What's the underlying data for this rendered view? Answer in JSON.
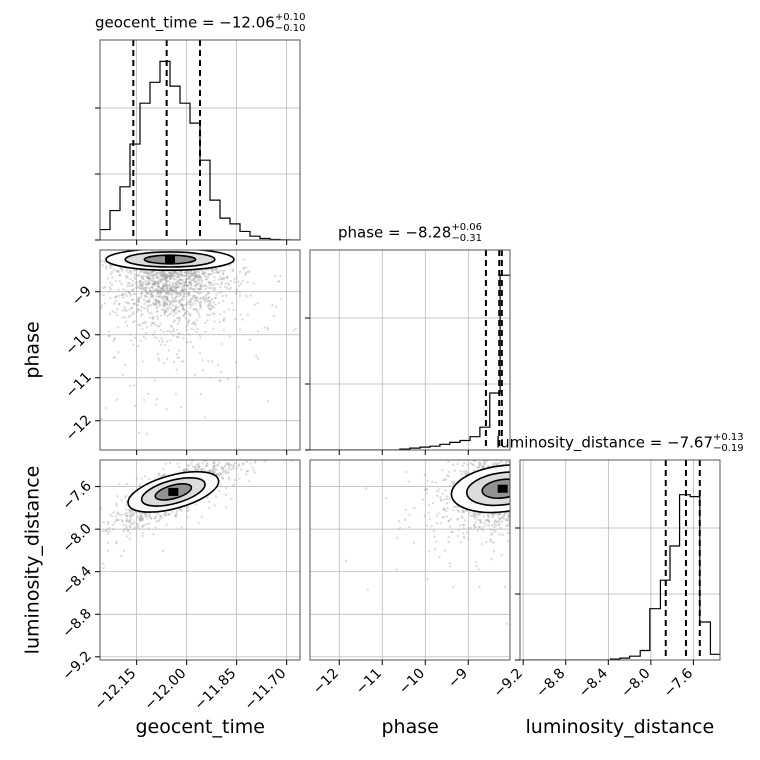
{
  "chart_data": {
    "type": "corner",
    "parameters": [
      "geocent_time",
      "phase",
      "luminosity_distance"
    ],
    "ranges": {
      "geocent_time": [
        -12.26,
        -11.66
      ],
      "phase": [
        -12.68,
        -8.03
      ],
      "luminosity_distance": [
        -9.23,
        -7.35
      ]
    },
    "quantiles": {
      "geocent_time": [
        -12.16,
        -12.06,
        -11.96
      ],
      "phase": [
        -8.59,
        -8.28,
        -8.22
      ],
      "luminosity_distance": [
        -7.86,
        -7.67,
        -7.54
      ]
    },
    "titles": [
      {
        "param": "geocent_time",
        "prefix": "geocent_time = ",
        "value": "−12.06",
        "plus": "+0.10",
        "minus": "−0.10"
      },
      {
        "param": "phase",
        "prefix": "phase = ",
        "value": "−8.28",
        "plus": "+0.06",
        "minus": "−0.31"
      },
      {
        "param": "luminosity_distance",
        "prefix": "luminosity_distance = ",
        "value": "−7.67",
        "plus": "+0.13",
        "minus": "−0.19"
      }
    ],
    "x_axis_labels": [
      "geocent_time",
      "phase",
      "luminosity_distance"
    ],
    "y_axis_labels": [
      "phase",
      "luminosity_distance"
    ],
    "ticks": {
      "geocent_time": {
        "values": [
          -12.15,
          -12.0,
          -11.85,
          -11.7
        ],
        "labels": [
          "−12.15",
          "−12.00",
          "−11.85",
          "−11.70"
        ]
      },
      "phase": {
        "values": [
          -12,
          -11,
          -10,
          -9
        ],
        "labels": [
          "−12",
          "−11",
          "−10",
          "−9"
        ]
      },
      "luminosity_distance": {
        "values": [
          -9.2,
          -8.8,
          -8.4,
          -8.0,
          -7.6
        ],
        "labels": [
          "−9.2",
          "−8.8",
          "−8.4",
          "−8.0",
          "−7.6"
        ]
      }
    },
    "histograms": {
      "geocent_time": {
        "edges": [
          -12.26,
          -12.23,
          -12.2,
          -12.17,
          -12.14,
          -12.11,
          -12.08,
          -12.05,
          -12.02,
          -11.99,
          -11.96,
          -11.93,
          -11.9,
          -11.87,
          -11.84,
          -11.81,
          -11.78,
          -11.75,
          -11.72,
          -11.69,
          -11.66
        ],
        "counts": [
          0.055,
          0.155,
          0.28,
          0.505,
          0.72,
          0.83,
          0.94,
          0.81,
          0.72,
          0.615,
          0.42,
          0.21,
          0.115,
          0.085,
          0.045,
          0.02,
          0.008,
          0.003,
          0.001,
          0.0
        ]
      },
      "phase": {
        "edges": [
          -12.68,
          -12.45,
          -12.22,
          -11.98,
          -11.75,
          -11.52,
          -11.29,
          -11.05,
          -10.82,
          -10.59,
          -10.36,
          -10.12,
          -9.89,
          -9.66,
          -9.43,
          -9.19,
          -8.96,
          -8.73,
          -8.5,
          -8.26,
          -8.03
        ],
        "counts": [
          0.0,
          0.0,
          0.0,
          0.0,
          0.0,
          0.0,
          0.0,
          0.0,
          0.0,
          0.005,
          0.01,
          0.015,
          0.02,
          0.03,
          0.04,
          0.05,
          0.07,
          0.12,
          0.3,
          0.92
        ]
      },
      "luminosity_distance": {
        "edges": [
          -9.23,
          -9.14,
          -9.04,
          -8.95,
          -8.85,
          -8.76,
          -8.67,
          -8.57,
          -8.48,
          -8.38,
          -8.29,
          -8.2,
          -8.1,
          -8.01,
          -7.91,
          -7.82,
          -7.73,
          -7.63,
          -7.54,
          -7.44,
          -7.35
        ],
        "counts": [
          0.0,
          0.0,
          0.0,
          0.0,
          0.0,
          0.0,
          0.0,
          0.0,
          0.0,
          0.005,
          0.01,
          0.02,
          0.05,
          0.27,
          0.42,
          0.6,
          0.87,
          0.86,
          0.2,
          0.03
        ]
      }
    },
    "scatter": {
      "phase_vs_geocent_time": {
        "center": [
          -12.05,
          -8.25
        ],
        "spread": [
          0.08,
          0.5
        ],
        "corr": 0.0
      },
      "luminosity_distance_vs_geocent_time": {
        "center": [
          -12.04,
          -7.65
        ],
        "spread": [
          0.07,
          0.13
        ],
        "corr": 0.8
      },
      "luminosity_distance_vs_phase": {
        "center": [
          -8.2,
          -7.62
        ],
        "spread": [
          0.6,
          0.18
        ],
        "corr": 0.3
      }
    },
    "grid": true,
    "colors": {
      "hist": "#000000",
      "points": "#9a9a9a",
      "grid": "#b0b0b0"
    }
  }
}
